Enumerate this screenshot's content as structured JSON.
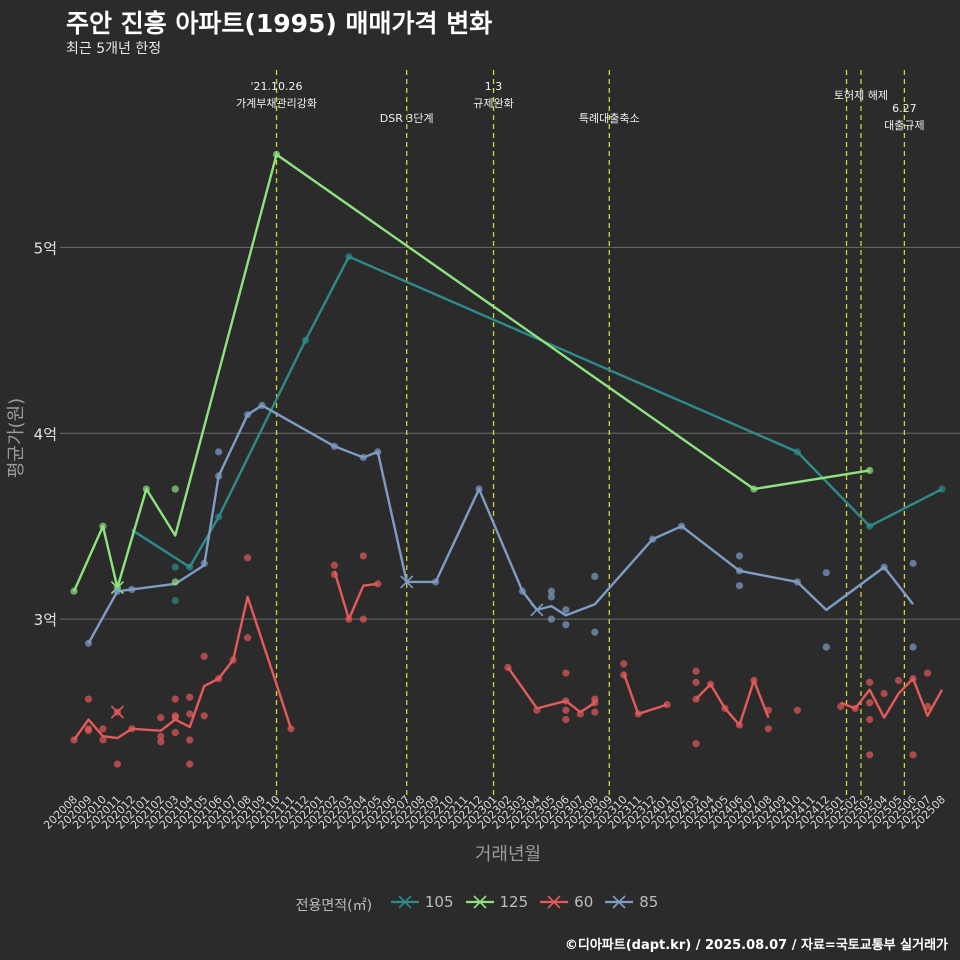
{
  "title": "주안 진흥 아파트(1995) 매매가격 변화",
  "subtitle": "최근 5개년 한정",
  "caption": "©디아파트(dapt.kr) / 2025.08.07 / 자료=국토교통부 실거래가",
  "legend_title": "전용면적(㎡)",
  "chart_data": {
    "type": "line",
    "xlabel": "거래년월",
    "ylabel": "평균가(원)",
    "y_unit": "억 원",
    "ylim": [
      2.07,
      5.82
    ],
    "y_ticks": [
      {
        "value": 3,
        "label": "3억"
      },
      {
        "value": 4,
        "label": "4억"
      },
      {
        "value": 5,
        "label": "5억"
      }
    ],
    "grid": true,
    "legend_position": "bottom",
    "categories": [
      "202008",
      "202009",
      "202010",
      "202011",
      "202012",
      "202101",
      "202102",
      "202103",
      "202104",
      "202105",
      "202106",
      "202107",
      "202108",
      "202109",
      "202110",
      "202111",
      "202112",
      "202201",
      "202202",
      "202203",
      "202204",
      "202205",
      "202206",
      "202207",
      "202208",
      "202209",
      "202210",
      "202211",
      "202212",
      "202301",
      "202302",
      "202303",
      "202304",
      "202305",
      "202306",
      "202307",
      "202308",
      "202309",
      "202310",
      "202311",
      "202312",
      "202401",
      "202402",
      "202403",
      "202404",
      "202405",
      "202406",
      "202407",
      "202408",
      "202409",
      "202410",
      "202411",
      "202412",
      "202501",
      "202502",
      "202503",
      "202504",
      "202505",
      "202506",
      "202507",
      "202508"
    ],
    "series": [
      {
        "name": "105",
        "color": "#2e8b8a",
        "line": [
          [
            "202012",
            3.48
          ],
          [
            "202104",
            3.28
          ],
          [
            "202106",
            3.55
          ],
          [
            "202112",
            4.5
          ],
          [
            "202203",
            4.95
          ],
          [
            "202410",
            3.9
          ],
          [
            "202503",
            3.5
          ],
          [
            "202508",
            3.7
          ]
        ],
        "points": [
          [
            "202103",
            3.28
          ],
          [
            "202103",
            3.1
          ],
          [
            "202104",
            3.28
          ],
          [
            "202106",
            3.55
          ],
          [
            "202112",
            4.5
          ],
          [
            "202203",
            4.95
          ],
          [
            "202410",
            3.9
          ],
          [
            "202503",
            3.5
          ],
          [
            "202508",
            3.7
          ]
        ],
        "cross": []
      },
      {
        "name": "125",
        "color": "#8fe37f",
        "line": [
          [
            "202008",
            3.15
          ],
          [
            "202010",
            3.5
          ],
          [
            "202011",
            3.17
          ],
          [
            "202101",
            3.7
          ],
          [
            "202103",
            3.45
          ],
          [
            "202110",
            5.5
          ],
          [
            "202407",
            3.7
          ],
          [
            "202503",
            3.8
          ]
        ],
        "points": [
          [
            "202008",
            3.15
          ],
          [
            "202010",
            3.5
          ],
          [
            "202011",
            3.17
          ],
          [
            "202101",
            3.7
          ],
          [
            "202103",
            3.7
          ],
          [
            "202103",
            3.2
          ],
          [
            "202110",
            5.5
          ],
          [
            "202407",
            3.7
          ],
          [
            "202503",
            3.8
          ]
        ],
        "cross": [
          [
            "202011",
            3.17
          ]
        ]
      },
      {
        "name": "60",
        "color": "#e55a5a",
        "line": [
          [
            "202008",
            2.35
          ],
          [
            "202009",
            2.46
          ],
          [
            "202010",
            2.37
          ],
          [
            "202011",
            2.36
          ],
          [
            "202012",
            2.41
          ],
          [
            "202102",
            2.4
          ],
          [
            "202103",
            2.46
          ],
          [
            "202104",
            2.42
          ],
          [
            "202105",
            2.64
          ],
          [
            "202106",
            2.68
          ],
          [
            "202107",
            2.78
          ],
          [
            "202108",
            3.12
          ],
          [
            "202110",
            2.65
          ],
          [
            "202111",
            2.41
          ],
          null,
          [
            "202202",
            3.26
          ],
          [
            "202203",
            3.0
          ],
          [
            "202204",
            3.18
          ],
          [
            "202205",
            3.19
          ],
          null,
          [
            "202302",
            2.74
          ],
          [
            "202304",
            2.52
          ],
          [
            "202306",
            2.56
          ],
          [
            "202307",
            2.5
          ],
          [
            "202308",
            2.55
          ],
          null,
          [
            "202310",
            2.71
          ],
          [
            "202311",
            2.49
          ],
          [
            "202401",
            2.54
          ],
          null,
          [
            "202403",
            2.57
          ],
          [
            "202404",
            2.65
          ],
          [
            "202405",
            2.52
          ],
          [
            "202406",
            2.43
          ],
          [
            "202407",
            2.67
          ],
          [
            "202408",
            2.47
          ],
          null,
          [
            "202501",
            2.55
          ],
          [
            "202502",
            2.52
          ],
          [
            "202503",
            2.62
          ],
          [
            "202504",
            2.47
          ],
          [
            "202505",
            2.6
          ],
          [
            "202506",
            2.68
          ],
          [
            "202507",
            2.48
          ],
          [
            "202508",
            2.62
          ]
        ],
        "points": [
          [
            "202008",
            2.35
          ],
          [
            "202009",
            2.57
          ],
          [
            "202009",
            2.41
          ],
          [
            "202009",
            2.4
          ],
          [
            "202010",
            2.41
          ],
          [
            "202010",
            2.35
          ],
          [
            "202011",
            2.22
          ],
          [
            "202011",
            2.5
          ],
          [
            "202012",
            2.41
          ],
          [
            "202102",
            2.37
          ],
          [
            "202102",
            2.47
          ],
          [
            "202102",
            2.34
          ],
          [
            "202103",
            2.57
          ],
          [
            "202103",
            2.48
          ],
          [
            "202103",
            2.39
          ],
          [
            "202103",
            2.47
          ],
          [
            "202104",
            2.58
          ],
          [
            "202104",
            2.49
          ],
          [
            "202104",
            2.35
          ],
          [
            "202104",
            2.22
          ],
          [
            "202105",
            2.8
          ],
          [
            "202105",
            2.48
          ],
          [
            "202106",
            2.68
          ],
          [
            "202107",
            2.78
          ],
          [
            "202108",
            2.9
          ],
          [
            "202108",
            3.33
          ],
          [
            "202111",
            2.41
          ],
          [
            "202202",
            3.29
          ],
          [
            "202202",
            3.24
          ],
          [
            "202203",
            3.0
          ],
          [
            "202204",
            3.34
          ],
          [
            "202204",
            3.0
          ],
          [
            "202205",
            3.19
          ],
          [
            "202302",
            2.74
          ],
          [
            "202304",
            2.51
          ],
          [
            "202306",
            2.71
          ],
          [
            "202306",
            2.56
          ],
          [
            "202306",
            2.51
          ],
          [
            "202306",
            2.46
          ],
          [
            "202307",
            2.49
          ],
          [
            "202308",
            2.55
          ],
          [
            "202308",
            2.5
          ],
          [
            "202308",
            2.57
          ],
          [
            "202310",
            2.76
          ],
          [
            "202310",
            2.7
          ],
          [
            "202311",
            2.49
          ],
          [
            "202401",
            2.54
          ],
          [
            "202403",
            2.72
          ],
          [
            "202403",
            2.66
          ],
          [
            "202403",
            2.57
          ],
          [
            "202403",
            2.33
          ],
          [
            "202404",
            2.65
          ],
          [
            "202405",
            2.52
          ],
          [
            "202406",
            2.43
          ],
          [
            "202407",
            2.67
          ],
          [
            "202408",
            2.51
          ],
          [
            "202408",
            2.41
          ],
          [
            "202410",
            2.51
          ],
          [
            "202501",
            2.53
          ],
          [
            "202502",
            2.52
          ],
          [
            "202503",
            2.66
          ],
          [
            "202503",
            2.46
          ],
          [
            "202503",
            2.55
          ],
          [
            "202503",
            2.27
          ],
          [
            "202504",
            2.6
          ],
          [
            "202505",
            2.67
          ],
          [
            "202506",
            2.68
          ],
          [
            "202506",
            2.27
          ],
          [
            "202507",
            2.71
          ],
          [
            "202507",
            2.53
          ]
        ],
        "cross": [
          [
            "202011",
            2.5
          ]
        ]
      },
      {
        "name": "85",
        "color": "#7e9dc4",
        "line": [
          [
            "202009",
            2.87
          ],
          [
            "202011",
            3.15
          ],
          [
            "202012",
            3.16
          ],
          [
            "202103",
            3.19
          ],
          [
            "202105",
            3.29
          ],
          [
            "202106",
            3.77
          ],
          [
            "202108",
            4.1
          ],
          [
            "202109",
            4.15
          ],
          [
            "202202",
            3.93
          ],
          [
            "202204",
            3.87
          ],
          [
            "202205",
            3.9
          ],
          [
            "202207",
            3.2
          ],
          [
            "202209",
            3.2
          ],
          [
            "202212",
            3.7
          ],
          [
            "202303",
            3.15
          ],
          [
            "202304",
            3.05
          ],
          [
            "202305",
            3.07
          ],
          [
            "202306",
            3.02
          ],
          [
            "202308",
            3.08
          ],
          [
            "202312",
            3.43
          ],
          [
            "202402",
            3.5
          ],
          [
            "202406",
            3.26
          ],
          [
            "202410",
            3.2
          ],
          [
            "202412",
            3.05
          ],
          [
            "202504",
            3.28
          ],
          [
            "202506",
            3.08
          ]
        ],
        "points": [
          [
            "202009",
            2.87
          ],
          [
            "202011",
            3.15
          ],
          [
            "202012",
            3.16
          ],
          [
            "202105",
            3.3
          ],
          [
            "202106",
            3.9
          ],
          [
            "202106",
            3.77
          ],
          [
            "202108",
            4.1
          ],
          [
            "202109",
            4.15
          ],
          [
            "202202",
            3.93
          ],
          [
            "202204",
            3.87
          ],
          [
            "202205",
            3.9
          ],
          [
            "202209",
            3.2
          ],
          [
            "202212",
            3.7
          ],
          [
            "202303",
            3.15
          ],
          [
            "202305",
            3.15
          ],
          [
            "202305",
            3.12
          ],
          [
            "202305",
            3.0
          ],
          [
            "202306",
            3.05
          ],
          [
            "202306",
            2.97
          ],
          [
            "202308",
            3.23
          ],
          [
            "202308",
            2.93
          ],
          [
            "202312",
            3.43
          ],
          [
            "202402",
            3.5
          ],
          [
            "202406",
            3.34
          ],
          [
            "202406",
            3.18
          ],
          [
            "202406",
            3.26
          ],
          [
            "202410",
            3.2
          ],
          [
            "202412",
            3.25
          ],
          [
            "202412",
            2.85
          ],
          [
            "202504",
            3.28
          ],
          [
            "202506",
            3.3
          ],
          [
            "202506",
            2.85
          ]
        ],
        "cross": [
          [
            "202207",
            3.2
          ],
          [
            "202304",
            3.05
          ]
        ]
      }
    ],
    "events": [
      {
        "x": 14.0,
        "lines": [
          "'21.10.26",
          "가계부채관리강화"
        ],
        "label_y": 90
      },
      {
        "x": 23.0,
        "lines": [
          "DSR 3단계"
        ],
        "label_y": 122
      },
      {
        "x": 29.0,
        "lines": [
          "1.3",
          "규제완화"
        ],
        "label_y": 90
      },
      {
        "x": 37.0,
        "lines": [
          "특례대출축소"
        ],
        "label_y": 122
      },
      {
        "x": 53.4,
        "lines": [],
        "label_y": 0
      },
      {
        "x": 54.4,
        "lines": [
          "토허제 해제"
        ],
        "label_y": 99
      },
      {
        "x": 57.4,
        "lines": [
          "6.27",
          "대출규제"
        ],
        "label_y": 112
      }
    ]
  }
}
